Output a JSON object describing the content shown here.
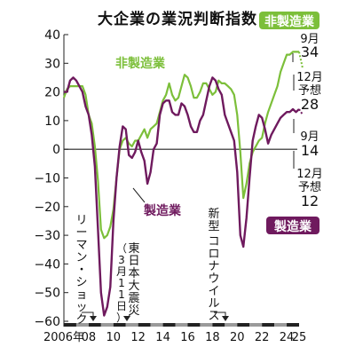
{
  "chart_data": {
    "type": "line",
    "title": "大企業の業況判断指数",
    "ylim": [
      -60,
      40
    ],
    "y_ticks": [
      40,
      30,
      20,
      10,
      0,
      -10,
      -20,
      -30,
      -40,
      -50,
      -60
    ],
    "y_tick_labels": [
      "40",
      "30",
      "20",
      "10",
      "0",
      "−10",
      "−20",
      "−30",
      "−40",
      "−50",
      "−60"
    ],
    "xlim": [
      2006,
      2025
    ],
    "x_tick_labels": [
      {
        "x": 2006,
        "label": "2006年"
      },
      {
        "x": 2008,
        "label": "08"
      },
      {
        "x": 2010,
        "label": "10"
      },
      {
        "x": 2012,
        "label": "12"
      },
      {
        "x": 2014,
        "label": "14"
      },
      {
        "x": 2016,
        "label": "16"
      },
      {
        "x": 2018,
        "label": "18"
      },
      {
        "x": 2020,
        "label": "20"
      },
      {
        "x": 2022,
        "label": "22"
      },
      {
        "x": 2024,
        "label": "24"
      },
      {
        "x": 2025,
        "label": "25"
      }
    ],
    "grid": false,
    "series": [
      {
        "name": "非製造業",
        "color": "#7cbf3a",
        "points": [
          [
            2006.0,
            18
          ],
          [
            2006.25,
            21
          ],
          [
            2006.5,
            22
          ],
          [
            2006.75,
            22
          ],
          [
            2007.0,
            22
          ],
          [
            2007.25,
            22
          ],
          [
            2007.5,
            22
          ],
          [
            2007.75,
            19
          ],
          [
            2008.0,
            12
          ],
          [
            2008.25,
            9
          ],
          [
            2008.5,
            1
          ],
          [
            2008.75,
            -11
          ],
          [
            2009.0,
            -28
          ],
          [
            2009.25,
            -31
          ],
          [
            2009.5,
            -30
          ],
          [
            2009.75,
            -27
          ],
          [
            2010.0,
            -21
          ],
          [
            2010.25,
            -10
          ],
          [
            2010.5,
            0
          ],
          [
            2010.75,
            3
          ],
          [
            2011.0,
            4
          ],
          [
            2011.25,
            2
          ],
          [
            2011.5,
            1
          ],
          [
            2011.75,
            3
          ],
          [
            2012.0,
            3
          ],
          [
            2012.25,
            5
          ],
          [
            2012.5,
            7
          ],
          [
            2012.75,
            4
          ],
          [
            2013.0,
            7
          ],
          [
            2013.25,
            8
          ],
          [
            2013.5,
            9
          ],
          [
            2013.75,
            13
          ],
          [
            2014.0,
            17
          ],
          [
            2014.25,
            19
          ],
          [
            2014.5,
            23
          ],
          [
            2014.75,
            19
          ],
          [
            2015.0,
            17
          ],
          [
            2015.25,
            18
          ],
          [
            2015.5,
            22
          ],
          [
            2015.75,
            26
          ],
          [
            2016.0,
            25
          ],
          [
            2016.25,
            22
          ],
          [
            2016.5,
            18
          ],
          [
            2016.75,
            18
          ],
          [
            2017.0,
            20
          ],
          [
            2017.25,
            23
          ],
          [
            2017.5,
            23
          ],
          [
            2017.75,
            21
          ],
          [
            2018.0,
            19
          ],
          [
            2018.25,
            20
          ],
          [
            2018.5,
            24
          ],
          [
            2018.75,
            23
          ],
          [
            2019.0,
            23
          ],
          [
            2019.25,
            22
          ],
          [
            2019.5,
            21
          ],
          [
            2019.75,
            19
          ],
          [
            2020.0,
            12
          ],
          [
            2020.25,
            -1
          ],
          [
            2020.5,
            -17
          ],
          [
            2020.75,
            -12
          ],
          [
            2021.0,
            -5
          ],
          [
            2021.25,
            -1
          ],
          [
            2021.5,
            1
          ],
          [
            2021.75,
            3
          ],
          [
            2022.0,
            4
          ],
          [
            2022.25,
            9
          ],
          [
            2022.5,
            13
          ],
          [
            2022.75,
            16
          ],
          [
            2023.0,
            19
          ],
          [
            2023.25,
            22
          ],
          [
            2023.5,
            27
          ],
          [
            2023.75,
            30
          ],
          [
            2024.0,
            33
          ],
          [
            2024.25,
            33
          ],
          [
            2024.5,
            34
          ],
          [
            2024.75,
            34
          ],
          [
            2025.0,
            34
          ]
        ],
        "forecast": [
          [
            2025.0,
            34
          ],
          [
            2025.3,
            28
          ]
        ],
        "label": "非製造業"
      },
      {
        "name": "製造業",
        "color": "#6f1a5e",
        "points": [
          [
            2006.0,
            20
          ],
          [
            2006.25,
            20
          ],
          [
            2006.5,
            24
          ],
          [
            2006.75,
            25
          ],
          [
            2007.0,
            24
          ],
          [
            2007.25,
            22
          ],
          [
            2007.5,
            20
          ],
          [
            2007.75,
            15
          ],
          [
            2008.0,
            12
          ],
          [
            2008.25,
            5
          ],
          [
            2008.5,
            -6
          ],
          [
            2008.75,
            -28
          ],
          [
            2009.0,
            -50
          ],
          [
            2009.25,
            -58
          ],
          [
            2009.5,
            -55
          ],
          [
            2009.75,
            -48
          ],
          [
            2010.0,
            -25
          ],
          [
            2010.25,
            -10
          ],
          [
            2010.5,
            1
          ],
          [
            2010.75,
            8
          ],
          [
            2011.0,
            7
          ],
          [
            2011.25,
            -2
          ],
          [
            2011.5,
            -3
          ],
          [
            2011.75,
            -1
          ],
          [
            2012.0,
            3
          ],
          [
            2012.25,
            -1
          ],
          [
            2012.5,
            -4
          ],
          [
            2012.75,
            -12
          ],
          [
            2013.0,
            -8
          ],
          [
            2013.25,
            0
          ],
          [
            2013.5,
            2
          ],
          [
            2013.75,
            12
          ],
          [
            2014.0,
            16
          ],
          [
            2014.25,
            17
          ],
          [
            2014.5,
            17
          ],
          [
            2014.75,
            13
          ],
          [
            2015.0,
            12
          ],
          [
            2015.25,
            12
          ],
          [
            2015.5,
            16
          ],
          [
            2015.75,
            15
          ],
          [
            2016.0,
            12
          ],
          [
            2016.25,
            8
          ],
          [
            2016.5,
            6
          ],
          [
            2016.75,
            6
          ],
          [
            2017.0,
            10
          ],
          [
            2017.25,
            12
          ],
          [
            2017.5,
            17
          ],
          [
            2017.75,
            22
          ],
          [
            2018.0,
            25
          ],
          [
            2018.25,
            24
          ],
          [
            2018.5,
            21
          ],
          [
            2018.75,
            19
          ],
          [
            2019.0,
            12
          ],
          [
            2019.25,
            9
          ],
          [
            2019.5,
            6
          ],
          [
            2019.75,
            3
          ],
          [
            2020.0,
            -8
          ],
          [
            2020.25,
            -30
          ],
          [
            2020.5,
            -34
          ],
          [
            2020.75,
            -24
          ],
          [
            2021.0,
            -10
          ],
          [
            2021.25,
            3
          ],
          [
            2021.5,
            8
          ],
          [
            2021.75,
            12
          ],
          [
            2022.0,
            11
          ],
          [
            2022.25,
            7
          ],
          [
            2022.5,
            2
          ],
          [
            2022.75,
            5
          ],
          [
            2023.0,
            7
          ],
          [
            2023.25,
            9
          ],
          [
            2023.5,
            11
          ],
          [
            2023.75,
            12
          ],
          [
            2024.0,
            13
          ],
          [
            2024.25,
            13
          ],
          [
            2024.5,
            14
          ],
          [
            2024.75,
            13
          ],
          [
            2025.0,
            14
          ]
        ],
        "forecast": [
          [
            2025.0,
            14
          ],
          [
            2025.3,
            12
          ]
        ],
        "label": "製造業"
      }
    ],
    "value_labels": [
      {
        "series": "非製造業",
        "period": "9月",
        "value": "34"
      },
      {
        "series": "非製造業",
        "period": "12月予想",
        "value": "28"
      },
      {
        "series": "製造業",
        "period": "9月",
        "value": "14"
      },
      {
        "series": "製造業",
        "period": "12月予想",
        "value": "12"
      }
    ],
    "annotations": [
      {
        "text": "リーマン・ショック",
        "x": 2008.75
      },
      {
        "text": "東日本大震災（3月11日）",
        "x": 2011.0
      },
      {
        "text": "新型コロナウイルス",
        "x": 2020.0
      }
    ]
  },
  "text": {
    "title": "大企業の業況判断指数",
    "legend_nonmfg": "非製造業",
    "legend_mfg": "製造業",
    "label_nonmfg_line": "非製造業",
    "label_mfg_line": "製造業",
    "sep_label": "9月",
    "sep_nonmfg_value": "34",
    "dec_label_1": "12月",
    "dec_label_2": "予想",
    "dec_nonmfg_value": "28",
    "sep_label_2": "9月",
    "sep_mfg_value": "14",
    "dec_label_3": "12月",
    "dec_label_4": "予想",
    "dec_mfg_value": "12",
    "lehman": "リーマン・ショック",
    "quake_line1": "東日本大震災",
    "quake_line2": "（3月11日）",
    "covid_line1": "新型",
    "covid_line2": "コロナウイルス"
  }
}
